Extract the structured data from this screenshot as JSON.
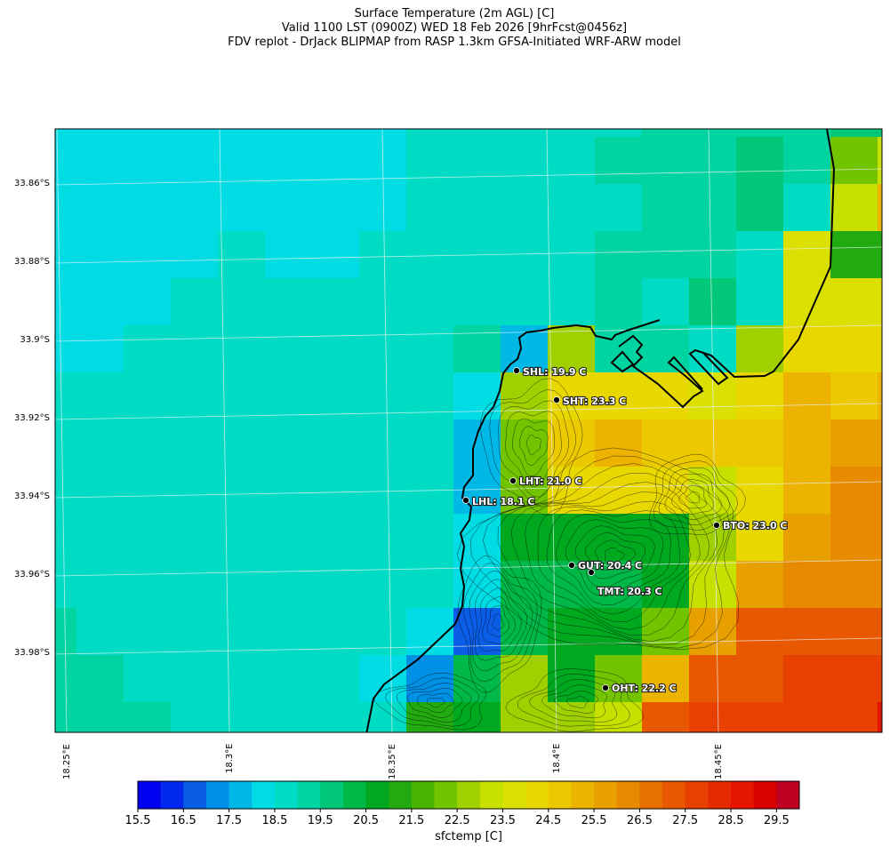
{
  "title": {
    "line1": "Surface Temperature (2m AGL) [C]",
    "line2": "Valid 1100 LST (0900Z) WED 18 Feb 2026 [9hrFcst@0456z]",
    "line3": "FDV replot - DrJack BLIPMAP from RASP 1.3km GFSA-Initiated WRF-ARW model"
  },
  "axes": {
    "lat_labels": [
      "33.86°S",
      "33.88°S",
      "33.9°S",
      "33.92°S",
      "33.94°S",
      "33.96°S",
      "33.98°S"
    ],
    "lon_labels": [
      "18.25°E",
      "18.3°E",
      "18.35°E",
      "18.4°E",
      "18.45°E"
    ]
  },
  "colorbar": {
    "label": "sfctemp [C]",
    "ticks": [
      "15.5",
      "16.5",
      "17.5",
      "18.5",
      "19.5",
      "20.5",
      "21.5",
      "22.5",
      "23.5",
      "24.5",
      "25.5",
      "26.5",
      "27.5",
      "28.5",
      "29.5"
    ],
    "min": 15.5,
    "max": 30.0,
    "step": 0.5,
    "colors": [
      "#0000f0",
      "#0028ee",
      "#0a5ee6",
      "#0090e6",
      "#00b8e6",
      "#00dce4",
      "#00dcc4",
      "#00d4a0",
      "#00c878",
      "#00b848",
      "#00a820",
      "#22aa10",
      "#46b400",
      "#72c400",
      "#a0d000",
      "#c8e000",
      "#dce000",
      "#e8d800",
      "#ecc800",
      "#ecb400",
      "#e8a000",
      "#e88a00",
      "#e87000",
      "#e85800",
      "#e84000",
      "#e42a00",
      "#e41400",
      "#d80000",
      "#c00020"
    ]
  },
  "chart_data": {
    "type": "heatmap",
    "variable": "sfctemp [C]",
    "grid_values": [
      [
        18.25,
        18.25,
        18.25,
        18.25,
        18.25,
        18.25,
        18.25,
        18.25,
        18.75,
        18.75,
        18.75,
        18.75,
        18.75,
        19.25,
        19.25,
        19.25,
        19.25,
        19.75,
        19.75
      ],
      [
        18.25,
        18.25,
        18.25,
        18.25,
        18.25,
        18.25,
        18.25,
        18.25,
        18.75,
        18.75,
        18.75,
        18.75,
        19.25,
        19.25,
        19.25,
        19.75,
        19.25,
        22.25,
        23.25
      ],
      [
        18.25,
        18.25,
        18.25,
        18.25,
        18.25,
        18.25,
        18.25,
        18.25,
        18.75,
        18.75,
        18.75,
        18.75,
        18.75,
        19.25,
        19.25,
        19.75,
        18.75,
        23.25,
        25.25
      ],
      [
        18.25,
        18.25,
        18.25,
        18.25,
        18.75,
        18.25,
        18.25,
        18.75,
        18.75,
        18.75,
        18.75,
        18.75,
        19.25,
        19.25,
        19.25,
        18.75,
        23.75,
        21.25,
        21.25
      ],
      [
        18.25,
        18.25,
        18.25,
        18.75,
        18.75,
        18.75,
        18.75,
        18.75,
        18.75,
        18.75,
        18.75,
        18.75,
        19.25,
        18.75,
        19.75,
        18.75,
        23.75,
        23.75,
        23.75
      ],
      [
        18.25,
        18.25,
        18.75,
        18.75,
        18.75,
        18.75,
        18.75,
        18.75,
        18.75,
        19.25,
        17.75,
        22.75,
        19.25,
        19.25,
        18.75,
        22.75,
        24.25,
        24.25,
        24.25
      ],
      [
        18.75,
        18.75,
        18.75,
        18.75,
        18.75,
        18.75,
        18.75,
        18.75,
        18.75,
        18.25,
        22.75,
        24.25,
        24.25,
        24.25,
        23.75,
        24.25,
        25.25,
        24.75,
        25.25
      ],
      [
        18.75,
        18.75,
        18.75,
        18.75,
        18.75,
        18.75,
        18.75,
        18.75,
        18.75,
        17.75,
        22.25,
        24.75,
        25.25,
        24.75,
        24.75,
        24.75,
        25.25,
        25.75,
        25.75
      ],
      [
        18.75,
        18.75,
        18.75,
        18.75,
        18.75,
        18.75,
        18.75,
        18.75,
        18.75,
        17.75,
        22.25,
        24.25,
        24.25,
        24.25,
        23.25,
        24.25,
        25.25,
        26.25,
        26.25
      ],
      [
        18.75,
        18.75,
        18.75,
        18.75,
        18.75,
        18.75,
        18.75,
        18.75,
        18.75,
        18.25,
        20.75,
        20.75,
        20.75,
        20.75,
        22.75,
        24.25,
        25.75,
        26.25,
        26.25
      ],
      [
        18.75,
        18.75,
        18.75,
        18.75,
        18.75,
        18.75,
        18.75,
        18.75,
        18.75,
        18.25,
        20.25,
        20.25,
        20.25,
        20.75,
        23.25,
        25.75,
        26.25,
        26.25,
        26.25
      ],
      [
        19.25,
        18.75,
        18.75,
        18.75,
        18.75,
        18.75,
        18.75,
        18.75,
        18.25,
        16.75,
        20.25,
        20.75,
        20.75,
        22.25,
        25.75,
        27.25,
        27.25,
        27.25,
        27.25
      ],
      [
        19.25,
        19.25,
        18.75,
        18.75,
        18.75,
        18.75,
        18.75,
        18.25,
        17.25,
        20.25,
        22.75,
        20.75,
        22.25,
        25.25,
        27.25,
        27.25,
        27.75,
        27.75,
        27.75
      ],
      [
        19.25,
        19.25,
        19.25,
        18.75,
        18.75,
        18.75,
        18.75,
        18.75,
        21.25,
        20.75,
        22.75,
        22.75,
        23.25,
        27.25,
        27.75,
        27.75,
        27.75,
        27.75,
        28.75
      ]
    ]
  },
  "stations": [
    {
      "label": "SHL: 19.9 C"
    },
    {
      "label": "SHT: 23.3 C"
    },
    {
      "label": "LHT: 21.0 C"
    },
    {
      "label": "LHL: 18.1 C"
    },
    {
      "label": "BTO: 23.0 C"
    },
    {
      "label": "GUT: 20.4 C"
    },
    {
      "label": "TMT: 20.3 C"
    },
    {
      "label": "OHT: 22.2 C"
    }
  ]
}
